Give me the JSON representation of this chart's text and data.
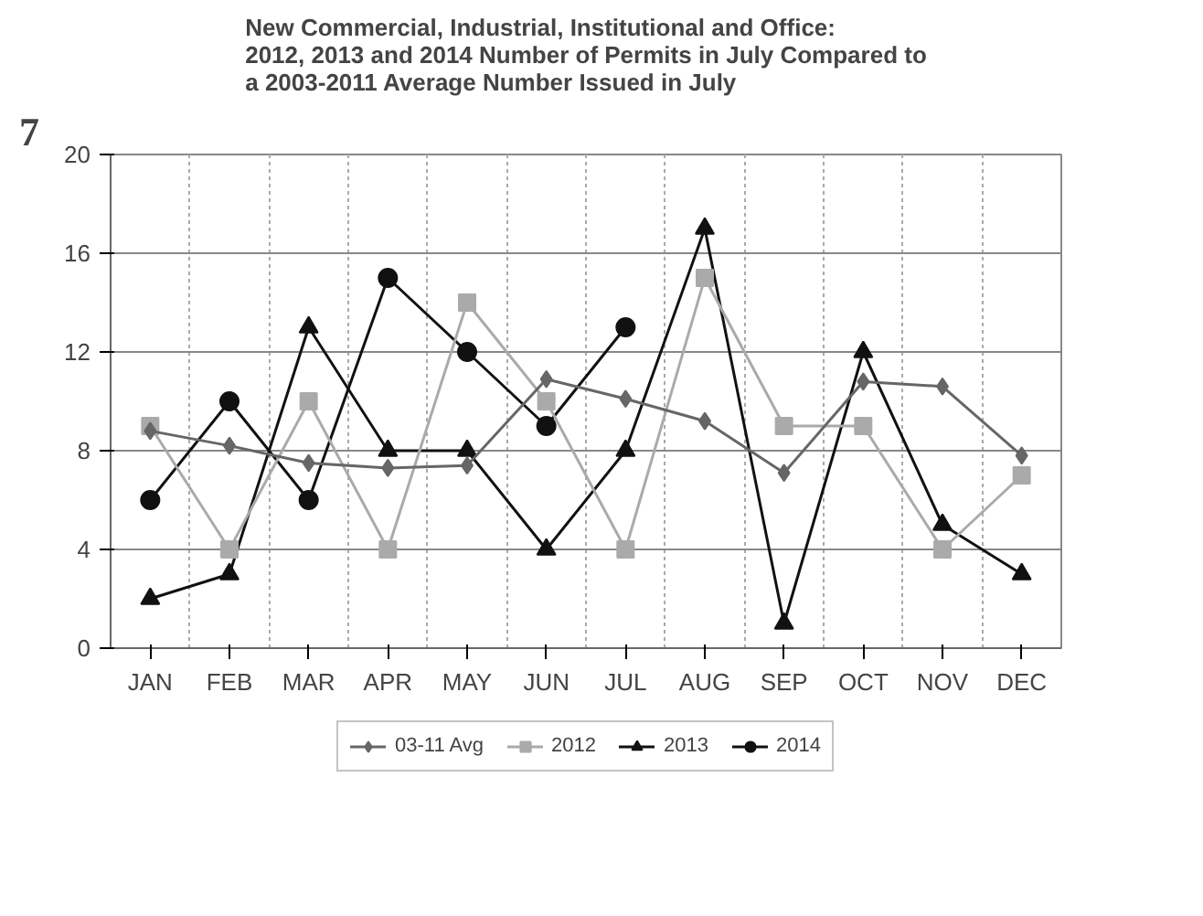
{
  "chart_data": {
    "type": "line",
    "title": "New Commercial, Industrial, Institutional and Office:\n2012, 2013 and 2014 Number of Permits in July Compared to\na 2003-2011 Average Number Issued in July",
    "annotations": [
      "7"
    ],
    "categories": [
      "JAN",
      "FEB",
      "MAR",
      "APR",
      "MAY",
      "JUN",
      "JUL",
      "AUG",
      "SEP",
      "OCT",
      "NOV",
      "DEC"
    ],
    "series": [
      {
        "name": "03-11 Avg",
        "color": "#666666",
        "marker": "diamond",
        "values": [
          8.8,
          8.2,
          7.5,
          7.3,
          7.4,
          10.9,
          10.1,
          9.2,
          7.1,
          10.8,
          10.6,
          7.8
        ]
      },
      {
        "name": "2012",
        "color": "#aaaaaa",
        "marker": "square",
        "values": [
          9,
          4,
          10,
          4,
          14,
          10,
          4,
          15,
          9,
          9,
          4,
          7
        ]
      },
      {
        "name": "2013",
        "color": "#111111",
        "marker": "triangle",
        "values": [
          2,
          3,
          13,
          8,
          8,
          4,
          8,
          17,
          1,
          12,
          5,
          3
        ]
      },
      {
        "name": "2014",
        "color": "#111111",
        "marker": "circle",
        "values": [
          6,
          10,
          6,
          15,
          12,
          9,
          13,
          null,
          null,
          null,
          null,
          null
        ]
      }
    ],
    "ylim": [
      0,
      20
    ],
    "yticks": [
      0,
      4,
      8,
      12,
      16,
      20
    ],
    "grid": true,
    "legend": "bottom",
    "line_style": "solid"
  }
}
